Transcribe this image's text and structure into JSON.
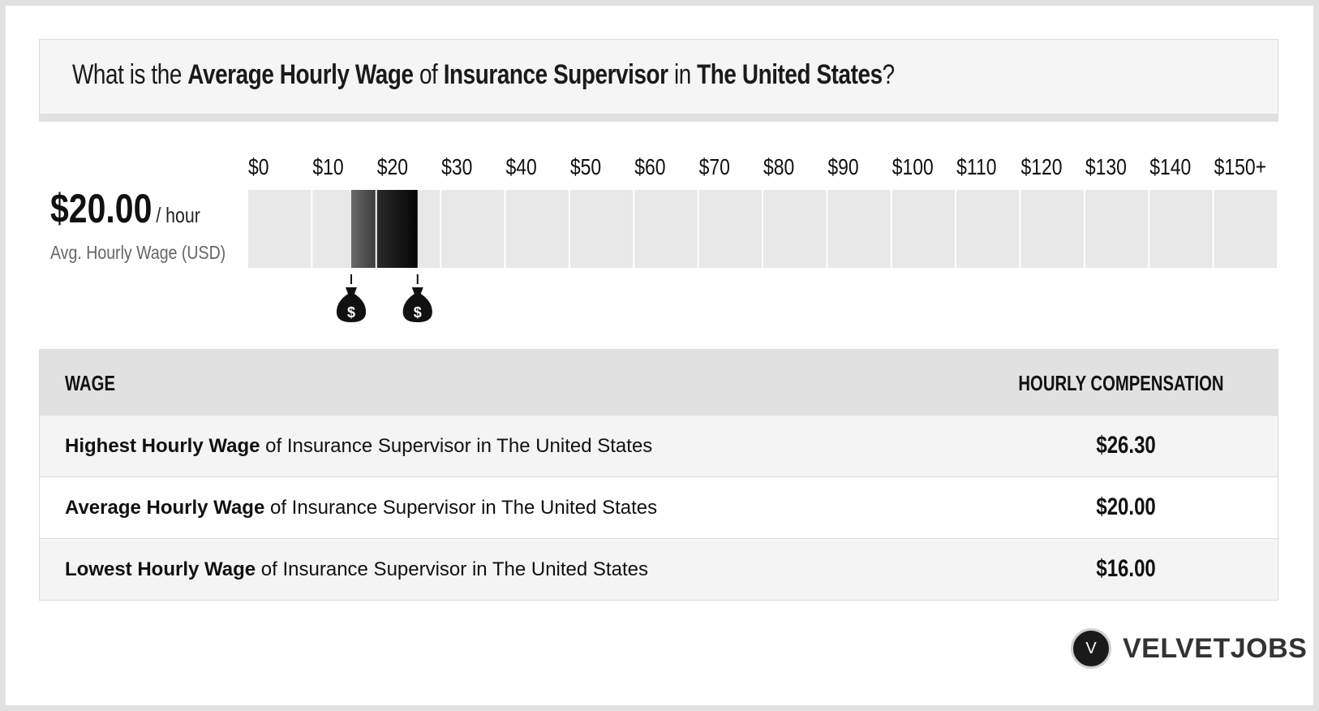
{
  "header": {
    "prefix": "What is the ",
    "metric": "Average Hourly Wage",
    "of": " of ",
    "job": "Insurance Supervisor",
    "in": " in ",
    "location": "The United States",
    "suffix": "?"
  },
  "average": {
    "value": "$20.00",
    "unit": "/ hour",
    "label": "Avg. Hourly Wage (USD)"
  },
  "chart_data": {
    "type": "bar",
    "tick_labels": [
      "$0",
      "$10",
      "$20",
      "$30",
      "$40",
      "$50",
      "$60",
      "$70",
      "$80",
      "$90",
      "$100",
      "$110",
      "$120",
      "$130",
      "$140",
      "$150+"
    ],
    "xlim": [
      0,
      150
    ],
    "range_low": 16.0,
    "range_high": 26.3,
    "average": 20.0,
    "colors": {
      "track": "#e8e8e8",
      "low_segment": "#5a5a5a",
      "high_segment": "#111111",
      "marker": "#111111"
    },
    "markers": [
      {
        "value": 16.0,
        "icon": "money-bag-icon",
        "glyph": "$"
      },
      {
        "value": 26.3,
        "icon": "money-bag-icon",
        "glyph": "$"
      }
    ]
  },
  "table": {
    "col_wage": "WAGE",
    "col_comp": "HOURLY COMPENSATION",
    "rows": [
      {
        "label_bold": "Highest Hourly Wage",
        "label_rest": " of Insurance Supervisor in The United States",
        "value": "$26.30"
      },
      {
        "label_bold": "Average Hourly Wage",
        "label_rest": " of Insurance Supervisor in The United States",
        "value": "$20.00"
      },
      {
        "label_bold": "Lowest Hourly Wage",
        "label_rest": " of Insurance Supervisor in The United States",
        "value": "$16.00"
      }
    ]
  },
  "logo": {
    "letter": "V",
    "text": "VELVETJOBS"
  }
}
